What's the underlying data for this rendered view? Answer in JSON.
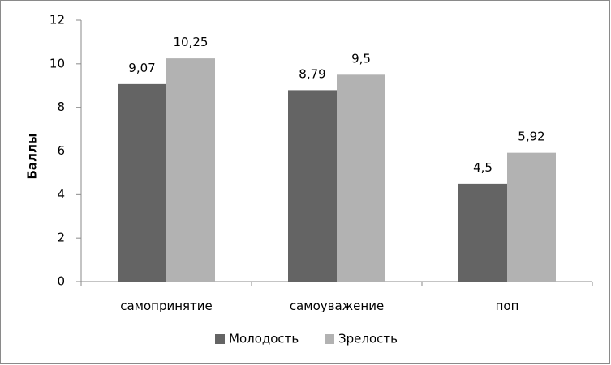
{
  "chart_data": {
    "type": "bar",
    "title": "",
    "xlabel": "",
    "ylabel": "Баллы",
    "ylim": [
      0,
      12
    ],
    "yticks": [
      0,
      2,
      4,
      6,
      8,
      10,
      12
    ],
    "categories": [
      "самопринятие",
      "самоуважение",
      "поп"
    ],
    "series": [
      {
        "name": "Молодость",
        "values": [
          9.07,
          8.79,
          4.5
        ],
        "labels": [
          "9,07",
          "8,79",
          "4,5"
        ],
        "color": "#646464"
      },
      {
        "name": "Зрелость",
        "values": [
          10.25,
          9.5,
          5.92
        ],
        "labels": [
          "10,25",
          "9,5",
          "5,92"
        ],
        "color": "#b2b2b2"
      }
    ],
    "grid": false,
    "legend_position": "bottom"
  }
}
